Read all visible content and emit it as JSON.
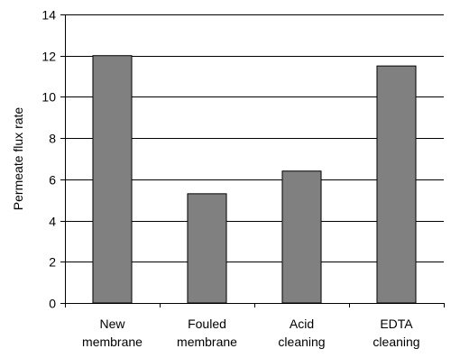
{
  "chart_data": {
    "type": "bar",
    "title": "",
    "xlabel": "",
    "ylabel": "Permeate flux rate",
    "categories": [
      [
        "New",
        "membrane"
      ],
      [
        "Fouled",
        "membrane"
      ],
      [
        "Acid",
        "cleaning"
      ],
      [
        "EDTA",
        "cleaning"
      ]
    ],
    "values": [
      12.0,
      5.3,
      6.4,
      11.5
    ],
    "ylim": [
      0,
      14
    ],
    "yticks": [
      "0",
      "2",
      "4",
      "6",
      "8",
      "10",
      "12",
      "14"
    ],
    "grid": true,
    "bar_color": "#808080",
    "bar_edge_color": "#000000"
  }
}
